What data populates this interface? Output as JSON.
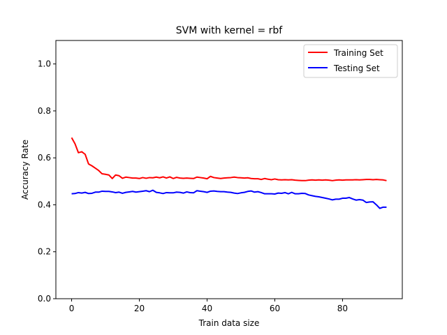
{
  "chart_data": {
    "type": "line",
    "title": "SVM with kernel = rbf",
    "xlabel": "Train data size",
    "ylabel": "Accuracy Rate",
    "xlim": [
      -4.65,
      97.65
    ],
    "ylim": [
      0.0,
      1.1
    ],
    "xticks": [
      0,
      20,
      40,
      60,
      80
    ],
    "yticks": [
      0.0,
      0.2,
      0.4,
      0.6,
      0.8,
      1.0
    ],
    "xtick_labels": [
      "0",
      "20",
      "40",
      "60",
      "80"
    ],
    "ytick_labels": [
      "0.0",
      "0.2",
      "0.4",
      "0.6",
      "0.8",
      "1.0"
    ],
    "grid": false,
    "legend_position": "top-right",
    "series": [
      {
        "name": "Training Set",
        "color": "#ff0000",
        "x": [
          0,
          1,
          2,
          3,
          4,
          5,
          6,
          7,
          8,
          9,
          10,
          11,
          12,
          13,
          14,
          15,
          16,
          17,
          18,
          19,
          20,
          21,
          22,
          23,
          24,
          25,
          26,
          27,
          28,
          29,
          30,
          31,
          32,
          33,
          34,
          35,
          36,
          37,
          38,
          39,
          40,
          41,
          42,
          43,
          44,
          45,
          46,
          47,
          48,
          49,
          50,
          51,
          52,
          53,
          54,
          55,
          56,
          57,
          58,
          59,
          60,
          61,
          62,
          63,
          64,
          65,
          66,
          67,
          68,
          69,
          70,
          71,
          72,
          73,
          74,
          75,
          76,
          77,
          78,
          79,
          80,
          81,
          82,
          83,
          84,
          85,
          86,
          87,
          88,
          89,
          90,
          91,
          92,
          93
        ],
        "y": [
          0.686,
          0.66,
          0.622,
          0.626,
          0.615,
          0.574,
          0.566,
          0.556,
          0.546,
          0.532,
          0.53,
          0.527,
          0.512,
          0.527,
          0.524,
          0.513,
          0.518,
          0.516,
          0.514,
          0.514,
          0.512,
          0.516,
          0.513,
          0.516,
          0.515,
          0.518,
          0.515,
          0.519,
          0.514,
          0.519,
          0.512,
          0.517,
          0.514,
          0.513,
          0.514,
          0.513,
          0.512,
          0.518,
          0.516,
          0.514,
          0.511,
          0.521,
          0.516,
          0.514,
          0.512,
          0.514,
          0.515,
          0.516,
          0.518,
          0.516,
          0.515,
          0.514,
          0.515,
          0.512,
          0.511,
          0.511,
          0.508,
          0.512,
          0.509,
          0.507,
          0.51,
          0.507,
          0.506,
          0.507,
          0.506,
          0.507,
          0.505,
          0.504,
          0.503,
          0.503,
          0.505,
          0.506,
          0.505,
          0.506,
          0.505,
          0.506,
          0.505,
          0.503,
          0.505,
          0.506,
          0.505,
          0.506,
          0.506,
          0.506,
          0.507,
          0.506,
          0.507,
          0.508,
          0.508,
          0.507,
          0.508,
          0.507,
          0.506,
          0.503
        ]
      },
      {
        "name": "Testing Set",
        "color": "#0000ff",
        "x": [
          0,
          1,
          2,
          3,
          4,
          5,
          6,
          7,
          8,
          9,
          10,
          11,
          12,
          13,
          14,
          15,
          16,
          17,
          18,
          19,
          20,
          21,
          22,
          23,
          24,
          25,
          26,
          27,
          28,
          29,
          30,
          31,
          32,
          33,
          34,
          35,
          36,
          37,
          38,
          39,
          40,
          41,
          42,
          43,
          44,
          45,
          46,
          47,
          48,
          49,
          50,
          51,
          52,
          53,
          54,
          55,
          56,
          57,
          58,
          59,
          60,
          61,
          62,
          63,
          64,
          65,
          66,
          67,
          68,
          69,
          70,
          71,
          72,
          73,
          74,
          75,
          76,
          77,
          78,
          79,
          80,
          81,
          82,
          83,
          84,
          85,
          86,
          87,
          88,
          89,
          90,
          91,
          92,
          93
        ],
        "y": [
          0.447,
          0.448,
          0.452,
          0.45,
          0.453,
          0.448,
          0.449,
          0.454,
          0.454,
          0.458,
          0.457,
          0.457,
          0.455,
          0.452,
          0.454,
          0.449,
          0.453,
          0.455,
          0.457,
          0.454,
          0.456,
          0.458,
          0.46,
          0.456,
          0.462,
          0.453,
          0.451,
          0.448,
          0.452,
          0.451,
          0.451,
          0.454,
          0.453,
          0.45,
          0.455,
          0.452,
          0.451,
          0.46,
          0.458,
          0.456,
          0.453,
          0.458,
          0.459,
          0.457,
          0.456,
          0.456,
          0.454,
          0.453,
          0.45,
          0.448,
          0.451,
          0.453,
          0.457,
          0.459,
          0.454,
          0.456,
          0.452,
          0.447,
          0.447,
          0.447,
          0.446,
          0.45,
          0.449,
          0.452,
          0.447,
          0.453,
          0.447,
          0.447,
          0.449,
          0.448,
          0.442,
          0.439,
          0.436,
          0.434,
          0.431,
          0.428,
          0.425,
          0.421,
          0.424,
          0.424,
          0.428,
          0.428,
          0.431,
          0.425,
          0.42,
          0.422,
          0.42,
          0.41,
          0.412,
          0.413,
          0.4,
          0.385,
          0.39,
          0.39
        ]
      }
    ]
  }
}
